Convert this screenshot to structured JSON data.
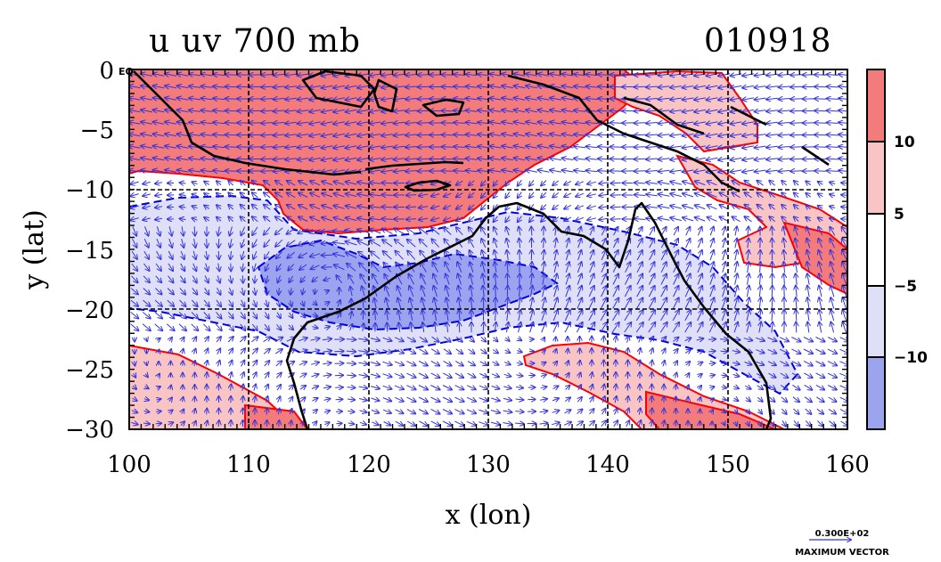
{
  "title": {
    "variable": "u uv 700 mb",
    "date": "010918"
  },
  "axes": {
    "xlabel": "x (lon)",
    "ylabel": "y (lat)",
    "x_ticks": [
      "100",
      "110",
      "120",
      "130",
      "140",
      "150",
      "160"
    ],
    "y_ticks": [
      "0",
      "−5",
      "−10",
      "−15",
      "−20",
      "−25",
      "−30"
    ],
    "eq_label": "EQ"
  },
  "map": {
    "lon_range": [
      100,
      160
    ],
    "lat_range": [
      -30,
      0
    ],
    "grid_lons": [
      110,
      120,
      130,
      140,
      150
    ],
    "grid_lats": [
      -10,
      -20
    ],
    "fill_colors": {
      "pos_strong": "#f47b7b",
      "pos_weak": "#f8c4c4",
      "neg_weak": "#dfe0f8",
      "neg_strong": "#9da4ef",
      "pos_contour": "#ff0000",
      "neg_contour": "#0000dd",
      "vector": "#3333dd",
      "coast": "#000000"
    }
  },
  "colorbar": {
    "labels": [
      "10",
      "5",
      "−5",
      "−10"
    ],
    "colors": [
      "#f47b7b",
      "#f8c4c4",
      "#ffffff",
      "#dfe0f8",
      "#9da4ef"
    ]
  },
  "vector_reference": {
    "value": "0.300E+02",
    "label": "MAXIMUM VECTOR"
  }
}
